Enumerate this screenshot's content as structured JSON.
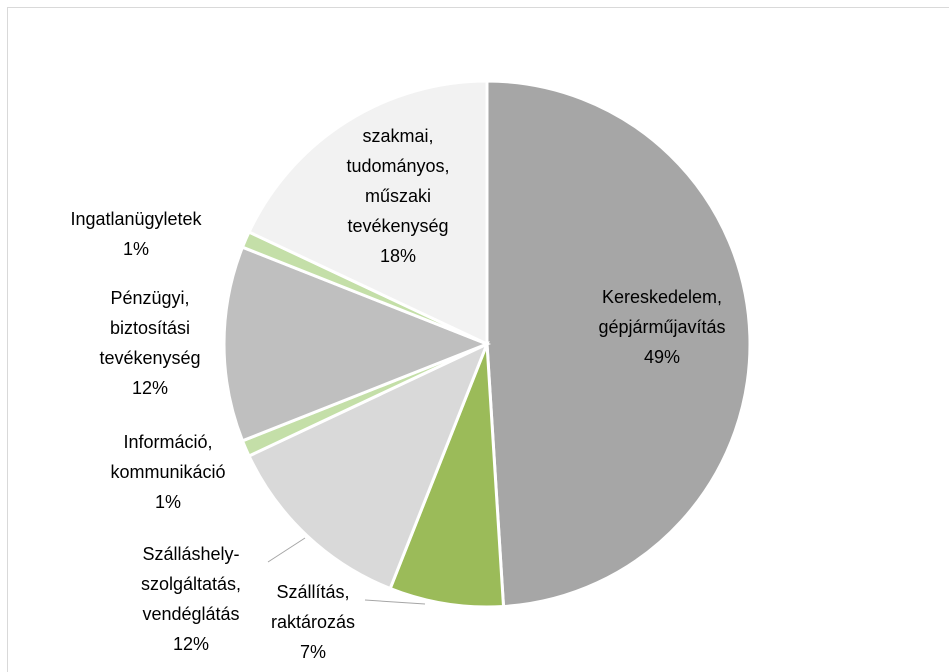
{
  "chart_data": {
    "type": "pie",
    "categories": [
      [
        "Kereskedelem,",
        "gépjárműjavítás"
      ],
      [
        "Szállítás,",
        "raktározás"
      ],
      [
        "Szálláshely-",
        "szolgáltatás,",
        "vendéglátás"
      ],
      [
        "Információ,",
        "kommunikáció"
      ],
      [
        "Pénzügyi,",
        "biztosítási",
        "tevékenység"
      ],
      [
        "Ingatlanügyletek"
      ],
      [
        "szakmai,",
        "tudományos,",
        "műszaki",
        "tevékenység"
      ]
    ],
    "values": [
      49,
      7,
      12,
      1,
      12,
      1,
      18
    ],
    "value_labels": [
      "49%",
      "7%",
      "12%",
      "1%",
      "12%",
      "1%",
      "18%"
    ],
    "colors": [
      "#a6a6a6",
      "#9bbb59",
      "#d9d9d9",
      "#c4dfa8",
      "#bfbfbf",
      "#c4dfa8",
      "#f2f2f2"
    ]
  }
}
